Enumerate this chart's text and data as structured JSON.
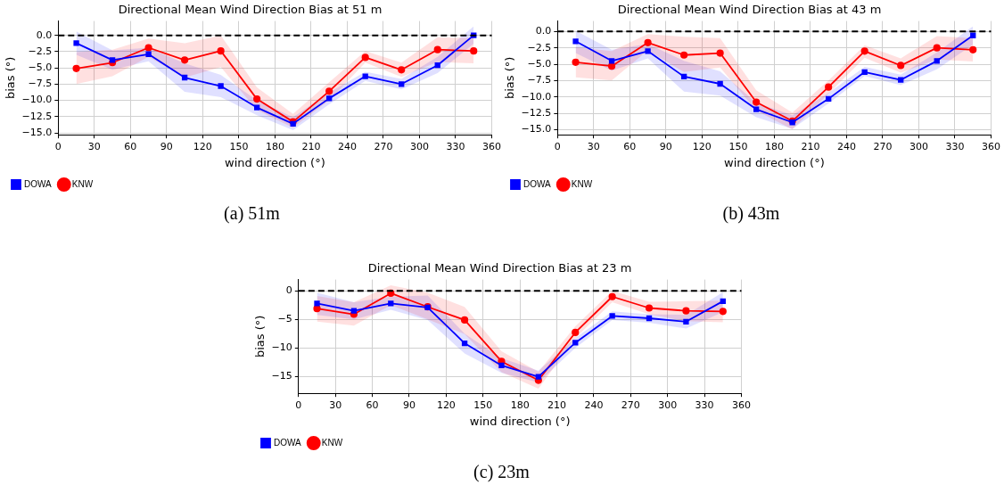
{
  "chart_data": [
    {
      "type": "line",
      "title": "Directional Mean Wind Direction Bias at 51 m",
      "xlabel": "wind direction (°)",
      "ylabel": "bias (°)",
      "annotations": [
        "(a) 51m"
      ],
      "x": [
        15,
        45,
        75,
        105,
        135,
        165,
        195,
        225,
        255,
        285,
        315,
        345
      ],
      "xlim": [
        0,
        360
      ],
      "xticks": [
        0,
        30,
        60,
        90,
        120,
        150,
        180,
        210,
        240,
        270,
        300,
        330,
        360
      ],
      "ylim": [
        -15.3,
        2.2
      ],
      "yticks": [
        {
          "value": -15,
          "label": "−15.0"
        },
        {
          "value": -12.5,
          "label": "−12.5"
        },
        {
          "value": -10,
          "label": "−10.0"
        },
        {
          "value": -7.5,
          "label": "−7.5"
        },
        {
          "value": -5,
          "label": "−5.0"
        },
        {
          "value": -2.5,
          "label": "−2.5"
        },
        {
          "value": 0,
          "label": "0.0"
        }
      ],
      "grid": true,
      "legend": "bottom left",
      "ref_lines": [
        {
          "axis": "y",
          "value": 0,
          "color": "#000000",
          "line_style": "dashed"
        }
      ],
      "series": [
        {
          "name": "KNW",
          "color": "#ff0000",
          "marker": "circle",
          "values": [
            -5.1,
            -4.2,
            -1.9,
            -3.8,
            -2.4,
            -9.8,
            -13.3,
            -8.6,
            -3.4,
            -5.3,
            -2.2,
            -2.4
          ],
          "lower": [
            -7.5,
            -6.3,
            -3.3,
            -6.5,
            -4.9,
            -11.5,
            -14.2,
            -10,
            -4.2,
            -6.4,
            -4.1,
            -4.3
          ],
          "upper": [
            -2.6,
            -2.2,
            -0.5,
            -1.2,
            0,
            -8,
            -12.1,
            -7.2,
            -2.4,
            -4.2,
            -0.3,
            -0.4
          ]
        },
        {
          "name": "DOWA",
          "color": "#0000ff",
          "marker": "square",
          "values": [
            -1.2,
            -3.8,
            -2.9,
            -6.5,
            -7.8,
            -11.1,
            -13.6,
            -9.7,
            -6.3,
            -7.5,
            -4.6,
            0
          ],
          "lower": [
            -3,
            -5.3,
            -4,
            -8.7,
            -9.5,
            -12.3,
            -14.6,
            -10.6,
            -7,
            -8.3,
            -5.8,
            -1.3
          ],
          "upper": [
            0.6,
            -2.3,
            -1.9,
            -4.3,
            -6.1,
            -10,
            -12.6,
            -8.8,
            -5.6,
            -6.7,
            -3.3,
            1.4
          ]
        }
      ]
    },
    {
      "type": "line",
      "title": "Directional Mean Wind Direction Bias at 43 m",
      "xlabel": "wind direction (°)",
      "ylabel": "bias (°)",
      "annotations": [
        "(b) 43m"
      ],
      "x": [
        15,
        45,
        75,
        105,
        135,
        165,
        195,
        225,
        255,
        285,
        315,
        345
      ],
      "xlim": [
        0,
        360
      ],
      "xticks": [
        0,
        30,
        60,
        90,
        120,
        150,
        180,
        210,
        240,
        270,
        300,
        330,
        360
      ],
      "ylim": [
        -15.8,
        1.6
      ],
      "yticks": [
        {
          "value": -15,
          "label": "−15.0"
        },
        {
          "value": -12.5,
          "label": "−12.5"
        },
        {
          "value": -10,
          "label": "−10.0"
        },
        {
          "value": -7.5,
          "label": "−7.5"
        },
        {
          "value": -5,
          "label": "−5.0"
        },
        {
          "value": -2.5,
          "label": "−2.5"
        },
        {
          "value": 0,
          "label": "0.0"
        }
      ],
      "grid": true,
      "legend": "bottom left",
      "ref_lines": [
        {
          "axis": "y",
          "value": 0,
          "color": "#000000",
          "line_style": "dashed"
        }
      ],
      "series": [
        {
          "name": "KNW",
          "color": "#ff0000",
          "marker": "circle",
          "values": [
            -4.7,
            -5.3,
            -1.7,
            -3.6,
            -3.3,
            -10.8,
            -13.7,
            -8.5,
            -3,
            -5.2,
            -2.5,
            -2.8
          ],
          "lower": [
            -7,
            -7.5,
            -2.9,
            -6.2,
            -5.5,
            -12.1,
            -15,
            -9.5,
            -4,
            -6.3,
            -4.3,
            -4.6
          ],
          "upper": [
            -2.4,
            -3,
            -0.4,
            -0.8,
            -1,
            -9,
            -12.4,
            -7.5,
            -2.1,
            -4.1,
            -0.7,
            -1
          ]
        },
        {
          "name": "DOWA",
          "color": "#0000ff",
          "marker": "square",
          "values": [
            -1.5,
            -4.5,
            -3,
            -6.9,
            -8,
            -11.9,
            -13.9,
            -10.3,
            -6.2,
            -7.4,
            -4.5,
            -0.6
          ],
          "lower": [
            -3.3,
            -6,
            -4.1,
            -9.2,
            -9.8,
            -13.1,
            -14.9,
            -11,
            -6.8,
            -8.2,
            -5.8,
            -2
          ],
          "upper": [
            0.1,
            -2.8,
            -1.9,
            -4.5,
            -6.1,
            -10.9,
            -12.8,
            -9.4,
            -5.4,
            -6.6,
            -3.2,
            0.8
          ]
        }
      ]
    },
    {
      "type": "line",
      "title": "Directional Mean Wind Direction Bias at 23 m",
      "xlabel": "wind direction (°)",
      "ylabel": "bias (°)",
      "annotations": [
        "(c) 23m"
      ],
      "x": [
        15,
        45,
        75,
        105,
        135,
        165,
        195,
        225,
        255,
        285,
        315,
        345
      ],
      "xlim": [
        0,
        360
      ],
      "xticks": [
        0,
        30,
        60,
        90,
        120,
        150,
        180,
        210,
        240,
        270,
        300,
        330,
        360
      ],
      "ylim": [
        -18,
        2
      ],
      "yticks": [
        {
          "value": -15,
          "label": "−15"
        },
        {
          "value": -10,
          "label": "−10"
        },
        {
          "value": -5,
          "label": "−5"
        },
        0
      ],
      "grid": true,
      "legend": "bottom left",
      "ref_lines": [
        {
          "axis": "y",
          "value": 0,
          "color": "#000000",
          "line_style": "dashed"
        }
      ],
      "series": [
        {
          "name": "KNW",
          "color": "#ff0000",
          "marker": "circle",
          "values": [
            -3.1,
            -4.1,
            -0.4,
            -2.8,
            -5.1,
            -12.4,
            -15.7,
            -7.3,
            -1,
            -3,
            -3.5,
            -3.6
          ],
          "lower": [
            -5.4,
            -6.1,
            -2.5,
            -5,
            -7.6,
            -14.3,
            -17.2,
            -8.3,
            -2,
            -4.1,
            -5.3,
            -5.5
          ],
          "upper": [
            -0.9,
            -2,
            1,
            -0.3,
            -2.8,
            -10.6,
            -14.2,
            -6.2,
            0,
            -1.9,
            -1.8,
            -1.7
          ]
        },
        {
          "name": "DOWA",
          "color": "#0000ff",
          "marker": "square",
          "values": [
            -2.2,
            -3.5,
            -2.2,
            -2.9,
            -9.2,
            -13.1,
            -15.1,
            -9.1,
            -4.4,
            -4.8,
            -5.4,
            -1.8
          ],
          "lower": [
            -4.2,
            -5,
            -3.3,
            -5.1,
            -11,
            -14.4,
            -16.1,
            -10,
            -5.1,
            -5.6,
            -6.6,
            -3.7
          ],
          "upper": [
            -0.3,
            -2,
            -1,
            -0.8,
            -7.5,
            -11.8,
            -14,
            -8.3,
            -3.6,
            -4.1,
            -4.2,
            -0.2
          ]
        }
      ]
    }
  ]
}
